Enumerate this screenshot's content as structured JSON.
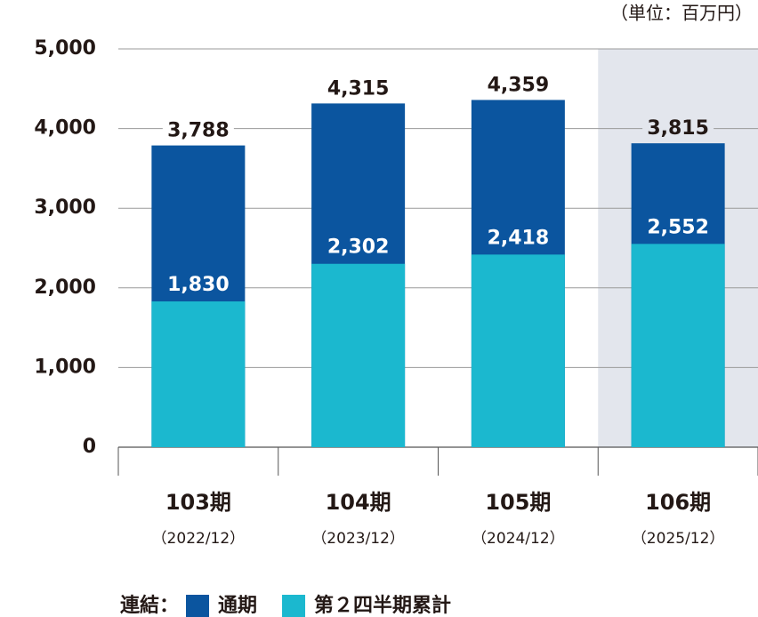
{
  "chart_data": {
    "type": "bar",
    "unit_note": "（単位：百万円）",
    "categories": [
      "103期",
      "104期",
      "105期",
      "106期"
    ],
    "category_sublabels": [
      "（2022/12）",
      "（2023/12）",
      "（2024/12）",
      "（2025/12）"
    ],
    "highlight_index": 3,
    "highlight_color": "#e3e6ed",
    "legend_title": "連結：",
    "series": [
      {
        "name": "通期",
        "color": "#0b559f",
        "values": [
          3788,
          4315,
          4359,
          3815
        ],
        "value_labels": [
          "3,788",
          "4,315",
          "4,359",
          "3,815"
        ]
      },
      {
        "name": "第２四半期累計",
        "color": "#1bb8cf",
        "values": [
          1830,
          2302,
          2418,
          2552
        ],
        "value_labels": [
          "1,830",
          "2,302",
          "2,418",
          "2,552"
        ]
      }
    ],
    "ylim": [
      0,
      5000
    ],
    "yticks": [
      0,
      {
        "value": 1000,
        "label": "1,000"
      },
      {
        "value": 2000,
        "label": "2,000"
      },
      {
        "value": 3000,
        "label": "3,000"
      },
      {
        "value": 4000,
        "label": "4,000"
      },
      {
        "value": 5000,
        "label": "5,000"
      }
    ],
    "grid": true
  }
}
